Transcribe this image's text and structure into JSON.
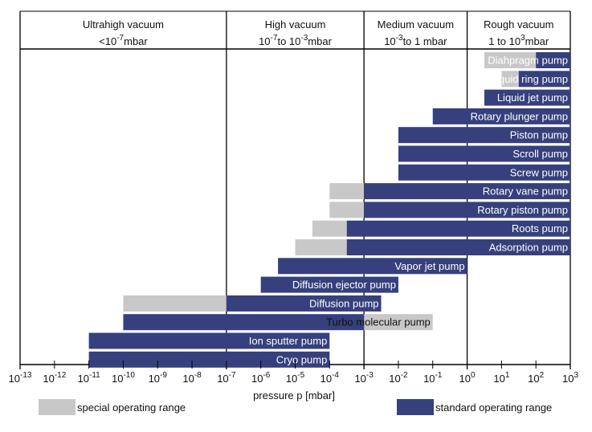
{
  "chart_data": {
    "type": "bar",
    "orientation": "horizontal",
    "xlabel": "pressure p [mbar]",
    "x_scale": "log10",
    "xlim_exponent": [
      -13,
      3
    ],
    "x_ticks": [
      {
        "exp": -13,
        "base": "10",
        "sup": "-13"
      },
      {
        "exp": -12,
        "base": "10",
        "sup": "-12"
      },
      {
        "exp": -11,
        "base": "10",
        "sup": "-11"
      },
      {
        "exp": -10,
        "base": "10",
        "sup": "-10"
      },
      {
        "exp": -9,
        "base": "10",
        "sup": "-9"
      },
      {
        "exp": -8,
        "base": "10",
        "sup": "-8"
      },
      {
        "exp": -7,
        "base": "10",
        "sup": "-7"
      },
      {
        "exp": -6,
        "base": "10",
        "sup": "-6"
      },
      {
        "exp": -5,
        "base": "10",
        "sup": "-5"
      },
      {
        "exp": -4,
        "base": "10",
        "sup": "-4"
      },
      {
        "exp": -3,
        "base": "10",
        "sup": "-3"
      },
      {
        "exp": -2,
        "base": "10",
        "sup": "-2"
      },
      {
        "exp": -1,
        "base": "10",
        "sup": "-1"
      },
      {
        "exp": 0,
        "base": "10",
        "sup": "0"
      },
      {
        "exp": 1,
        "base": "10",
        "sup": "1"
      },
      {
        "exp": 2,
        "base": "10",
        "sup": "2"
      },
      {
        "exp": 3,
        "base": "10",
        "sup": "3"
      }
    ],
    "regions": [
      {
        "name": "Ultrahigh vacuum",
        "range_pre": "<10",
        "range_sup": "-7",
        "range_post": "mbar",
        "from_exp": -13,
        "to_exp": -7
      },
      {
        "name": "High vacuum",
        "range_pre": "10",
        "range_sup": "-7",
        "range_post": "to 10",
        "range_sup2": "-3",
        "range_post2": "mbar",
        "from_exp": -7,
        "to_exp": -3
      },
      {
        "name": "Medium vacuum",
        "range_pre": "10",
        "range_sup": "-3",
        "range_post": "to 1 mbar",
        "from_exp": -3,
        "to_exp": 0
      },
      {
        "name": "Rough vacuum",
        "range_pre": "1 to 10",
        "range_sup": "3",
        "range_post": "mbar",
        "from_exp": 0,
        "to_exp": 3
      }
    ],
    "pumps": [
      {
        "name": "Diahpragm pump",
        "standard": [
          2,
          3
        ],
        "special": [
          0.5,
          2
        ]
      },
      {
        "name": "Liquid ring pump",
        "standard": [
          1.5,
          3
        ],
        "special": [
          1,
          1.5
        ]
      },
      {
        "name": "Liquid jet pump",
        "standard": [
          0.5,
          3
        ],
        "special": null
      },
      {
        "name": "Rotary plunger pump",
        "standard": [
          -1,
          3
        ],
        "special": null
      },
      {
        "name": "Piston pump",
        "standard": [
          -2,
          3
        ],
        "special": null
      },
      {
        "name": "Scroll pump",
        "standard": [
          -2,
          3
        ],
        "special": null
      },
      {
        "name": "Screw pump",
        "standard": [
          -2,
          3
        ],
        "special": null
      },
      {
        "name": "Rotary vane pump",
        "standard": [
          -3,
          3
        ],
        "special": [
          -4,
          -3
        ]
      },
      {
        "name": "Rotary piston pump",
        "standard": [
          -3,
          3
        ],
        "special": [
          -4,
          -3
        ]
      },
      {
        "name": "Roots pump",
        "standard": [
          -3.5,
          3
        ],
        "special": [
          -4.5,
          -3.5
        ]
      },
      {
        "name": "Adsorption pump",
        "standard": [
          -3.5,
          3
        ],
        "special": [
          -5,
          -3.5
        ]
      },
      {
        "name": "Vapor jet pump",
        "standard": [
          -5.5,
          0
        ],
        "special": null
      },
      {
        "name": "Diffusion ejector pump",
        "standard": [
          -6,
          -2
        ],
        "special": null
      },
      {
        "name": "Diffusion pump",
        "standard": [
          -7,
          -2.5
        ],
        "special": [
          -10,
          -7
        ]
      },
      {
        "name": "Turbo molecular pump",
        "standard": [
          -10,
          -3
        ],
        "special": [
          -3,
          -1
        ]
      },
      {
        "name": "Ion sputter pump",
        "standard": [
          -11,
          -4
        ],
        "special": null
      },
      {
        "name": "Cryo pump",
        "standard": [
          -11,
          -4
        ],
        "special": null
      }
    ],
    "legend": {
      "special": "special operating range",
      "standard": "standard operating range"
    },
    "colors": {
      "standard": "#36407d",
      "special": "#c8c8c8",
      "axis": "#000000"
    }
  }
}
